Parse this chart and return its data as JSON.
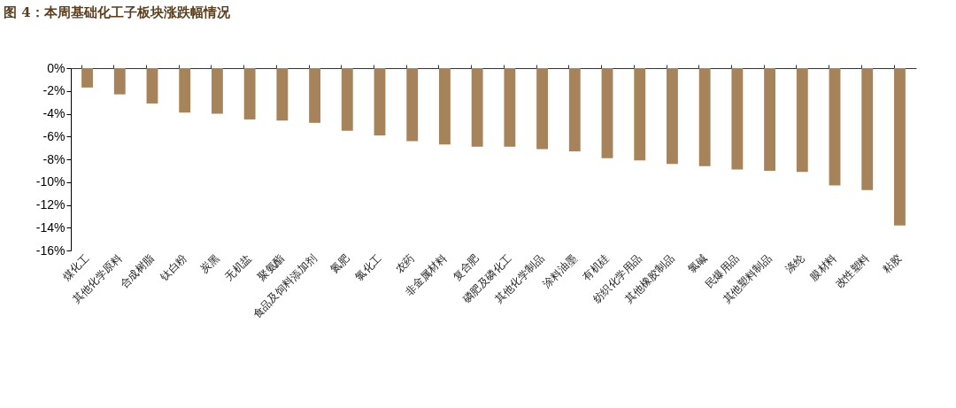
{
  "chart_data": {
    "type": "bar",
    "title": "图 4：本周基础化工子板块涨跌幅情况",
    "categories": [
      "煤化工",
      "其他化学原料",
      "合成树脂",
      "钛白粉",
      "炭黑",
      "无机盐",
      "聚氨酯",
      "食品及饲料添加剂",
      "氮肥",
      "氯化工",
      "农药",
      "非金属材料",
      "复合肥",
      "磷肥及磷化工",
      "其他化学制品",
      "涂料油墨",
      "有机硅",
      "纺织化学用品",
      "其他橡胶制品",
      "氯碱",
      "民爆用品",
      "其他塑料制品",
      "涤纶",
      "膜材料",
      "改性塑料",
      "粘胶"
    ],
    "values": [
      -1.7,
      -2.3,
      -3.1,
      -3.9,
      -4.0,
      -4.5,
      -4.6,
      -4.8,
      -5.5,
      -5.9,
      -6.4,
      -6.7,
      -6.9,
      -6.9,
      -7.1,
      -7.3,
      -7.9,
      -8.1,
      -8.4,
      -8.6,
      -8.9,
      -9.0,
      -9.1,
      -10.3,
      -10.7,
      -13.8
    ],
    "color": "#a6835a",
    "ylim": [
      -16,
      0
    ],
    "yticks": [
      {
        "value": -16,
        "label": "-16%"
      },
      {
        "value": -14,
        "label": "-14%"
      },
      {
        "value": -12,
        "label": "-12%"
      },
      {
        "value": -10,
        "label": "-10%"
      },
      {
        "value": -8,
        "label": "-8%"
      },
      {
        "value": -6,
        "label": "-6%"
      },
      {
        "value": -4,
        "label": "-4%"
      },
      {
        "value": -2,
        "label": "-2%"
      },
      {
        "value": 0,
        "label": "0%"
      }
    ],
    "grid": false
  }
}
